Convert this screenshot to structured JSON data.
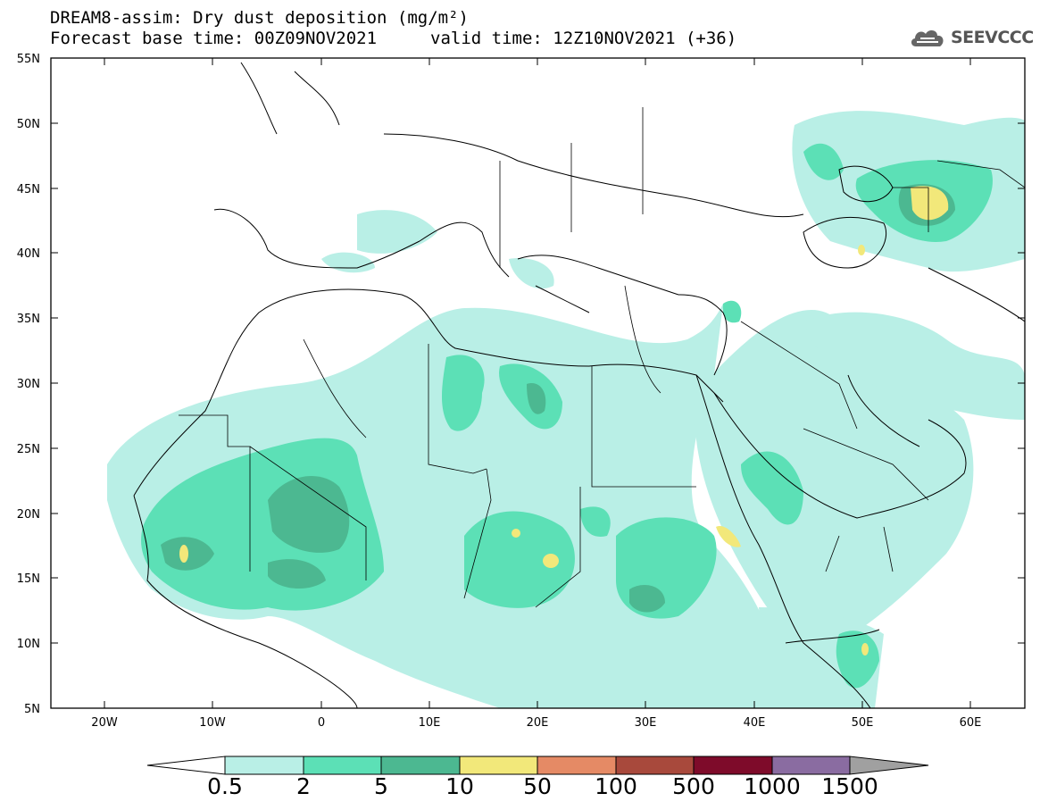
{
  "title_line1": "DREAM8-assim: Dry dust deposition (mg/m²)",
  "title_line2_base": "Forecast base time: 00Z09NOV2021",
  "title_line2_valid": "valid time: 12Z10NOV2021 (+36)",
  "logo": {
    "text": "SEEVCCC",
    "icon": "cloud-icon",
    "color": "#666666"
  },
  "map": {
    "lon_range": [
      -25,
      65
    ],
    "lat_range": [
      5,
      55
    ],
    "lat_labels": [
      "55N",
      "50N",
      "45N",
      "40N",
      "35N",
      "30N",
      "25N",
      "20N",
      "15N",
      "10N",
      "5N"
    ],
    "lon_labels": [
      "20W",
      "10W",
      "0",
      "10E",
      "20E",
      "30E",
      "40E",
      "50E",
      "60E"
    ]
  },
  "colorbar": {
    "labels": [
      "0.5",
      "2",
      "5",
      "10",
      "50",
      "100",
      "500",
      "1000",
      "1500"
    ],
    "colors": [
      "#b9efe6",
      "#5ce0b6",
      "#4cb891",
      "#f2e87a",
      "#e58a65",
      "#a8493c",
      "#7e0b2a",
      "#8a6ca1",
      "#a0a0a0"
    ]
  }
}
